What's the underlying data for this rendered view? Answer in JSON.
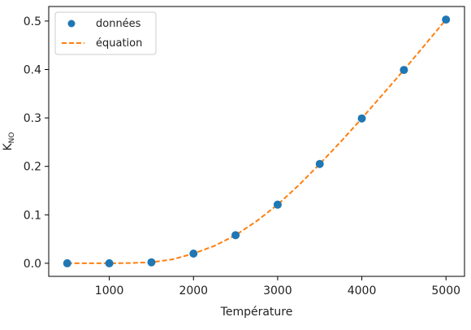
{
  "chart_data": {
    "type": "scatter",
    "xlabel": "Température",
    "ylabel_main": "K",
    "ylabel_sub": "NO",
    "xlim": [
      280,
      5220
    ],
    "ylim": [
      -0.027,
      0.53
    ],
    "xticks": [
      1000,
      2000,
      3000,
      4000,
      5000
    ],
    "yticks": [
      0.0,
      0.1,
      0.2,
      0.3,
      0.4,
      0.5
    ],
    "xtick_labels": [
      "1000",
      "2000",
      "3000",
      "4000",
      "5000"
    ],
    "ytick_labels": [
      "0.0",
      "0.1",
      "0.2",
      "0.3",
      "0.4",
      "0.5"
    ],
    "legend_position": "top-left",
    "series": [
      {
        "name": "données",
        "kind": "markers",
        "color": "#1f77b4",
        "x": [
          500,
          1000,
          1500,
          2000,
          2500,
          3000,
          3500,
          4000,
          4500,
          5000
        ],
        "y": [
          0.0,
          0.0,
          0.002,
          0.02,
          0.058,
          0.121,
          0.205,
          0.299,
          0.399,
          0.503
        ]
      },
      {
        "name": "équation",
        "kind": "dashed-line",
        "color": "#ff7f0e",
        "x": [
          500,
          750,
          1000,
          1250,
          1500,
          1750,
          2000,
          2250,
          2500,
          2750,
          3000,
          3250,
          3500,
          3750,
          4000,
          4250,
          4500,
          4750,
          5000
        ],
        "y": [
          0.0,
          0.0,
          0.0,
          0.0005,
          0.002,
          0.008,
          0.02,
          0.036,
          0.058,
          0.087,
          0.121,
          0.161,
          0.205,
          0.251,
          0.299,
          0.349,
          0.399,
          0.451,
          0.503
        ]
      }
    ]
  }
}
